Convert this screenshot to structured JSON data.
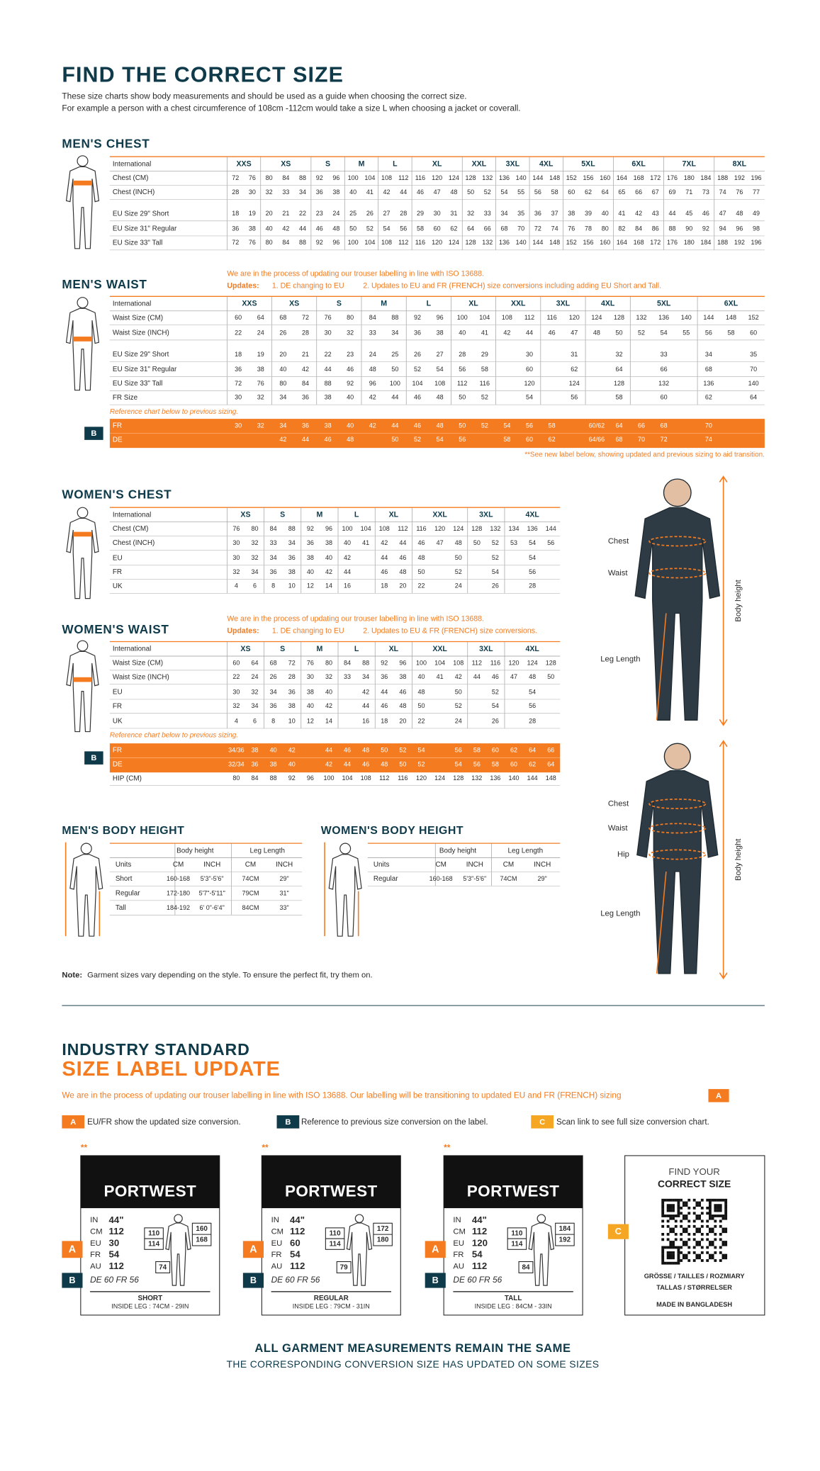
{
  "header": {
    "title": "FIND THE CORRECT SIZE",
    "line1": "These size charts show body measurements and should be used as a guide when choosing the correct size.",
    "line2": "For example a person with a chest circumference of 108cm -112cm would take a size L when choosing a jacket or coverall."
  },
  "mens_chest": {
    "title": "MEN'S CHEST",
    "header_label": "International",
    "columns": [
      "XXS",
      "XS",
      "S",
      "M",
      "L",
      "XL",
      "XXL",
      "3XL",
      "4XL",
      "5XL",
      "6XL",
      "7XL",
      "8XL"
    ],
    "rows": [
      {
        "label": "Chest (CM)",
        "values": [
          72,
          76,
          80,
          84,
          88,
          92,
          96,
          100,
          104,
          108,
          112,
          116,
          120,
          124,
          128,
          132,
          136,
          140,
          144,
          148,
          152,
          156,
          160,
          164,
          168,
          172,
          176,
          180,
          184,
          188,
          192,
          196
        ]
      },
      {
        "label": "Chest (INCH)",
        "values": [
          28,
          30,
          32,
          33,
          34,
          36,
          38,
          40,
          41,
          42,
          44,
          46,
          47,
          48,
          50,
          52,
          54,
          55,
          56,
          58,
          60,
          62,
          64,
          65,
          66,
          67,
          69,
          71,
          73,
          74,
          76,
          77
        ]
      },
      {
        "label": "EU Size 29\" Short",
        "values": [
          18,
          19,
          20,
          21,
          22,
          23,
          24,
          25,
          26,
          27,
          28,
          29,
          30,
          31,
          32,
          33,
          34,
          35,
          36,
          37,
          38,
          39,
          40,
          41,
          42,
          43,
          44,
          45,
          46,
          47,
          48,
          49
        ]
      },
      {
        "label": "EU Size 31\" Regular",
        "values": [
          36,
          38,
          40,
          42,
          44,
          46,
          48,
          50,
          52,
          54,
          56,
          58,
          60,
          62,
          64,
          66,
          68,
          70,
          72,
          74,
          76,
          78,
          80,
          82,
          84,
          86,
          88,
          90,
          92,
          94,
          96,
          98
        ]
      },
      {
        "label": "EU Size 33\" Tall",
        "values": [
          72,
          76,
          80,
          84,
          88,
          92,
          96,
          100,
          104,
          108,
          112,
          116,
          120,
          124,
          128,
          132,
          136,
          140,
          144,
          148,
          152,
          156,
          160,
          164,
          168,
          172,
          176,
          180,
          184,
          188,
          192,
          196
        ]
      }
    ]
  },
  "mens_waist": {
    "title": "MEN'S WAIST",
    "notice": {
      "text": "We are in the process of updating our trouser labelling in line with ISO 13688.",
      "updates_label": "Updates:",
      "update1": "1. DE changing to EU",
      "update2": "2. Updates to EU and FR (FRENCH) size conversions including adding EU Short and Tall."
    },
    "header_label": "International",
    "columns": [
      "XXS",
      "XS",
      "S",
      "M",
      "L",
      "XL",
      "XXL",
      "3XL",
      "4XL",
      "5XL",
      "6XL"
    ],
    "rows": [
      {
        "label": "Waist Size (CM)",
        "values": [
          60,
          64,
          68,
          72,
          76,
          80,
          84,
          88,
          92,
          96,
          100,
          104,
          108,
          112,
          116,
          120,
          124,
          128,
          132,
          136,
          140,
          144,
          148,
          152
        ]
      },
      {
        "label": "Waist Size (INCH)",
        "values": [
          22,
          24,
          26,
          28,
          30,
          32,
          33,
          34,
          36,
          38,
          40,
          41,
          42,
          44,
          46,
          47,
          48,
          50,
          52,
          54,
          55,
          56,
          58,
          60
        ]
      },
      {
        "label": "EU Size 29\" Short",
        "values": [
          18,
          19,
          20,
          21,
          22,
          23,
          24,
          25,
          26,
          27,
          28,
          29,
          null,
          30,
          null,
          31,
          null,
          32,
          null,
          33,
          null,
          34,
          null,
          35
        ]
      },
      {
        "label": "EU Size 31\" Regular",
        "values": [
          36,
          38,
          40,
          42,
          44,
          46,
          48,
          50,
          52,
          54,
          56,
          58,
          null,
          60,
          null,
          62,
          null,
          64,
          null,
          66,
          null,
          68,
          null,
          70
        ]
      },
      {
        "label": "EU Size 33\" Tall",
        "values": [
          72,
          76,
          80,
          84,
          88,
          92,
          96,
          100,
          104,
          108,
          112,
          116,
          null,
          120,
          null,
          124,
          null,
          128,
          null,
          132,
          null,
          136,
          null,
          140
        ]
      },
      {
        "label": "FR Size",
        "values": [
          30,
          32,
          34,
          36,
          38,
          40,
          42,
          44,
          46,
          48,
          50,
          52,
          null,
          54,
          null,
          56,
          null,
          58,
          null,
          60,
          null,
          62,
          null,
          64
        ]
      }
    ],
    "reference_note": "Reference chart below to previous sizing.",
    "badge": "B",
    "previous_rows": [
      {
        "label": "FR",
        "values": [
          30,
          32,
          34,
          36,
          38,
          40,
          42,
          44,
          46,
          48,
          50,
          52,
          54,
          56,
          58,
          null,
          "60/62",
          64,
          66,
          68,
          null,
          70,
          null,
          null
        ]
      },
      {
        "label": "DE",
        "values": [
          null,
          null,
          42,
          44,
          46,
          48,
          null,
          50,
          52,
          54,
          56,
          null,
          58,
          60,
          62,
          null,
          "64/66",
          68,
          70,
          72,
          null,
          74,
          null,
          null
        ]
      }
    ],
    "footnote": "**See new label below, showing updated and previous sizing to aid transition."
  },
  "womens_chest": {
    "title": "WOMEN'S CHEST",
    "header_label": "International",
    "columns": [
      "XS",
      "S",
      "M",
      "L",
      "XL",
      "XXL",
      "3XL",
      "4XL"
    ],
    "rows": [
      {
        "label": "Chest (CM)",
        "values": [
          76,
          80,
          84,
          88,
          92,
          96,
          100,
          104,
          108,
          112,
          116,
          120,
          124,
          128,
          132,
          134,
          136,
          144
        ]
      },
      {
        "label": "Chest (INCH)",
        "values": [
          30,
          32,
          33,
          34,
          36,
          38,
          40,
          41,
          42,
          44,
          46,
          47,
          48,
          50,
          52,
          53,
          54,
          56
        ]
      },
      {
        "label": "EU",
        "values": [
          30,
          32,
          34,
          36,
          38,
          40,
          42,
          null,
          44,
          46,
          48,
          null,
          50,
          null,
          52,
          null,
          54,
          null
        ]
      },
      {
        "label": "FR",
        "values": [
          32,
          34,
          36,
          38,
          40,
          42,
          44,
          null,
          46,
          48,
          50,
          null,
          52,
          null,
          54,
          null,
          56,
          null
        ]
      },
      {
        "label": "UK",
        "values": [
          4,
          6,
          8,
          10,
          12,
          14,
          16,
          null,
          18,
          20,
          22,
          null,
          24,
          null,
          26,
          null,
          28,
          null
        ]
      }
    ]
  },
  "womens_waist": {
    "title": "WOMEN'S WAIST",
    "notice": {
      "text": "We are in the process of updating our trouser labelling in line with ISO 13688.",
      "updates_label": "Updates:",
      "update1": "1. DE changing to EU",
      "update2": "2. Updates to EU & FR (FRENCH) size conversions."
    },
    "header_label": "International",
    "columns": [
      "XS",
      "S",
      "M",
      "L",
      "XL",
      "XXL",
      "3XL",
      "4XL"
    ],
    "rows": [
      {
        "label": "Waist Size (CM)",
        "values": [
          60,
          64,
          68,
          72,
          76,
          80,
          84,
          88,
          92,
          96,
          100,
          104,
          108,
          112,
          116,
          120,
          124,
          128
        ]
      },
      {
        "label": "Waist Size (INCH)",
        "values": [
          22,
          24,
          26,
          28,
          30,
          32,
          33,
          34,
          36,
          38,
          40,
          41,
          42,
          44,
          46,
          47,
          48,
          50
        ]
      },
      {
        "label": "EU",
        "values": [
          30,
          32,
          34,
          36,
          38,
          40,
          null,
          42,
          44,
          46,
          48,
          null,
          50,
          null,
          52,
          null,
          54,
          null
        ]
      },
      {
        "label": "FR",
        "values": [
          32,
          34,
          36,
          38,
          40,
          42,
          null,
          44,
          46,
          48,
          50,
          null,
          52,
          null,
          54,
          null,
          56,
          null
        ]
      },
      {
        "label": "UK",
        "values": [
          4,
          6,
          8,
          10,
          12,
          14,
          null,
          16,
          18,
          20,
          22,
          null,
          24,
          null,
          26,
          null,
          28,
          null
        ]
      }
    ],
    "reference_note": "Reference chart below to previous sizing.",
    "badge": "B",
    "previous_rows": [
      {
        "label": "FR",
        "values": [
          "34/36",
          38,
          40,
          42,
          null,
          44,
          46,
          48,
          50,
          52,
          54,
          null,
          56,
          58,
          60,
          62,
          64,
          66
        ]
      },
      {
        "label": "DE",
        "values": [
          "32/34",
          36,
          38,
          40,
          null,
          42,
          44,
          46,
          48,
          50,
          52,
          null,
          54,
          56,
          58,
          60,
          62,
          64
        ]
      }
    ],
    "extra_rows": [
      {
        "label": "HIP (CM)",
        "values": [
          80,
          84,
          88,
          92,
          96,
          100,
          104,
          108,
          112,
          116,
          120,
          124,
          128,
          132,
          136,
          140,
          144,
          148
        ]
      }
    ]
  },
  "mens_body_height": {
    "title": "MEN'S BODY HEIGHT",
    "group_headers": [
      "Body height",
      "Leg Length"
    ],
    "units": [
      "Units",
      "CM",
      "INCH",
      "CM",
      "INCH"
    ],
    "rows": [
      [
        "Short",
        "160-168",
        "5'3\"-5'6\"",
        "74CM",
        "29\""
      ],
      [
        "Regular",
        "172-180",
        "5'7\"-5'11\"",
        "79CM",
        "31\""
      ],
      [
        "Tall",
        "184-192",
        "6' 0\"-6'4\"",
        "84CM",
        "33\""
      ]
    ]
  },
  "womens_body_height": {
    "title": "WOMEN'S BODY HEIGHT",
    "group_headers": [
      "Body height",
      "Leg Length"
    ],
    "units": [
      "Units",
      "CM",
      "INCH",
      "CM",
      "INCH"
    ],
    "rows": [
      [
        "Regular",
        "160-168",
        "5'3\"-5'6\"",
        "74CM",
        "29\""
      ]
    ]
  },
  "figure_labels": {
    "man": {
      "chest": "Chest",
      "waist": "Waist",
      "leg": "Leg Length",
      "height": "Body height"
    },
    "woman": {
      "chest": "Chest",
      "waist": "Waist",
      "hip": "Hip",
      "leg": "Leg Length",
      "height": "Body height"
    }
  },
  "note": {
    "label": "Note:",
    "text": "Garment sizes vary depending on the style. To ensure the perfect fit, try them on."
  },
  "label_update": {
    "kicker": "INDUSTRY STANDARD",
    "title": "SIZE LABEL UPDATE",
    "intro": "We are in the process of updating our trouser labelling in line with ISO 13688. Our labelling will be transitioning to updated EU and FR (FRENCH) sizing",
    "intro_badge": "A",
    "legend": [
      {
        "badge": "A",
        "text": "EU/FR show the updated size conversion."
      },
      {
        "badge": "B",
        "text": "Reference to previous size conversion on the label."
      },
      {
        "badge": "C",
        "text": "Scan link to see full size conversion chart."
      }
    ],
    "labels": [
      {
        "stars": "**",
        "brand": "PORTWEST",
        "lines": [
          [
            "IN",
            "44\""
          ],
          [
            "CM",
            112
          ],
          [
            "EU",
            30
          ],
          [
            "FR",
            54
          ],
          [
            "AU",
            112
          ]
        ],
        "badge_a": "A",
        "badge_b": "B",
        "previous": "DE 60 FR 56",
        "chest": [
          110,
          114
        ],
        "height": [
          160,
          168
        ],
        "leg": 74,
        "fit": "SHORT",
        "inside_leg": "INSIDE LEG : 74CM - 29IN"
      },
      {
        "stars": "**",
        "brand": "PORTWEST",
        "lines": [
          [
            "IN",
            "44\""
          ],
          [
            "CM",
            112
          ],
          [
            "EU",
            60
          ],
          [
            "FR",
            54
          ],
          [
            "AU",
            112
          ]
        ],
        "badge_a": "A",
        "badge_b": "B",
        "previous": "DE 60 FR 56",
        "chest": [
          110,
          114
        ],
        "height": [
          172,
          180
        ],
        "leg": 79,
        "fit": "REGULAR",
        "inside_leg": "INSIDE LEG : 79CM - 31IN"
      },
      {
        "stars": "**",
        "brand": "PORTWEST",
        "lines": [
          [
            "IN",
            "44\""
          ],
          [
            "CM",
            112
          ],
          [
            "EU",
            120
          ],
          [
            "FR",
            54
          ],
          [
            "AU",
            112
          ]
        ],
        "badge_a": "A",
        "badge_b": "B",
        "previous": "DE 60 FR 56",
        "chest": [
          110,
          114
        ],
        "height": [
          184,
          192
        ],
        "leg": 84,
        "fit": "TALL",
        "inside_leg": "INSIDE LEG : 84CM - 33IN"
      }
    ],
    "qr_card": {
      "badge": "C",
      "line1": "FIND YOUR",
      "line2": "CORRECT SIZE",
      "languages1": "GRÖSSE / TAILLES / ROZMIARY",
      "languages2": "TALLAS / STØRRELSER",
      "origin": "MADE IN BANGLADESH"
    }
  },
  "footer": {
    "line1": "ALL GARMENT MEASUREMENTS REMAIN THE SAME",
    "line2": "THE CORRESPONDING CONVERSION SIZE HAS UPDATED ON SOME SIZES"
  }
}
